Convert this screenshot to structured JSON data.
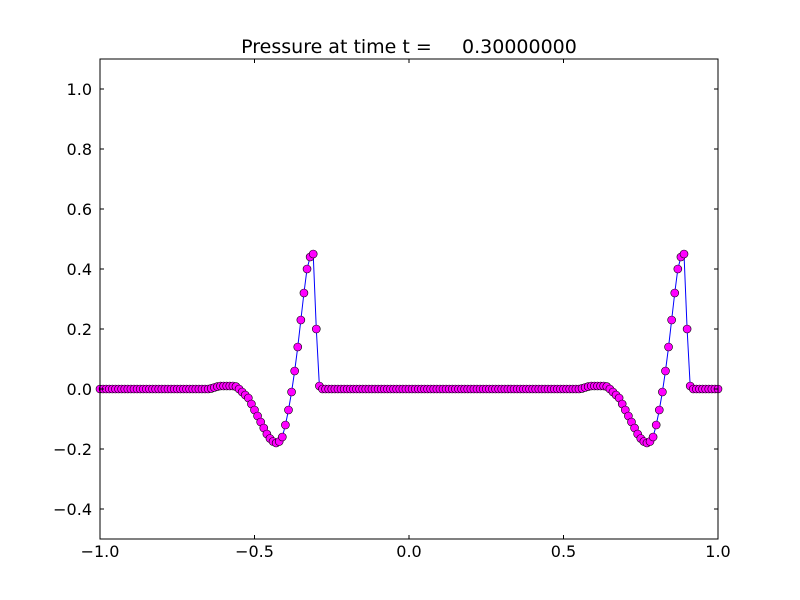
{
  "chart_data": {
    "type": "line",
    "title": "Pressure at time t =     0.30000000",
    "x": [
      -1.0,
      -0.99,
      -0.98,
      -0.97,
      -0.96,
      -0.95,
      -0.94,
      -0.93,
      -0.92,
      -0.91,
      -0.9,
      -0.89,
      -0.88,
      -0.87,
      -0.86,
      -0.85,
      -0.84,
      -0.83,
      -0.82,
      -0.81,
      -0.8,
      -0.79,
      -0.78,
      -0.77,
      -0.76,
      -0.75,
      -0.74,
      -0.73,
      -0.72,
      -0.71,
      -0.7,
      -0.69,
      -0.68,
      -0.67,
      -0.66,
      -0.65,
      -0.64,
      -0.63,
      -0.62,
      -0.61,
      -0.6,
      -0.59,
      -0.58,
      -0.57,
      -0.56,
      -0.55,
      -0.54,
      -0.53,
      -0.52,
      -0.51,
      -0.5,
      -0.49,
      -0.48,
      -0.47,
      -0.46,
      -0.45,
      -0.44,
      -0.43,
      -0.42,
      -0.41,
      -0.4,
      -0.39,
      -0.38,
      -0.37,
      -0.36,
      -0.35,
      -0.34,
      -0.33,
      -0.32,
      -0.31,
      -0.3,
      -0.29,
      -0.28,
      -0.27,
      -0.26,
      -0.25,
      -0.24,
      -0.23,
      -0.22,
      -0.21,
      -0.2,
      -0.19,
      -0.18,
      -0.17,
      -0.16,
      -0.15,
      -0.14,
      -0.13,
      -0.12,
      -0.11,
      -0.1,
      -0.09,
      -0.08,
      -0.07,
      -0.06,
      -0.05,
      -0.04,
      -0.03,
      -0.02,
      -0.01,
      0.0,
      0.01,
      0.02,
      0.03,
      0.04,
      0.05,
      0.06,
      0.07,
      0.08,
      0.09,
      0.1,
      0.11,
      0.12,
      0.13,
      0.14,
      0.15,
      0.16,
      0.17,
      0.18,
      0.19,
      0.2,
      0.21,
      0.22,
      0.23,
      0.24,
      0.25,
      0.26,
      0.27,
      0.28,
      0.29,
      0.3,
      0.31,
      0.32,
      0.33,
      0.34,
      0.35,
      0.36,
      0.37,
      0.38,
      0.39,
      0.4,
      0.41,
      0.42,
      0.43,
      0.44,
      0.45,
      0.46,
      0.47,
      0.48,
      0.49,
      0.5,
      0.51,
      0.52,
      0.53,
      0.54,
      0.55,
      0.56,
      0.57,
      0.58,
      0.59,
      0.6,
      0.61,
      0.62,
      0.63,
      0.64,
      0.65,
      0.66,
      0.67,
      0.68,
      0.69,
      0.7,
      0.71,
      0.72,
      0.73,
      0.74,
      0.75,
      0.76,
      0.77,
      0.78,
      0.79,
      0.8,
      0.81,
      0.82,
      0.83,
      0.84,
      0.85,
      0.86,
      0.87,
      0.88,
      0.89,
      0.9,
      0.91,
      0.92,
      0.93,
      0.94,
      0.95,
      0.96,
      0.97,
      0.98,
      0.99,
      1.0
    ],
    "series": [
      {
        "color": "#0000ff",
        "marker_color": "#ff00ff",
        "values": [
          0,
          0,
          0,
          0,
          0,
          0,
          0,
          0,
          0,
          0,
          0,
          0,
          0,
          0,
          0,
          0,
          0,
          0,
          0,
          0,
          0,
          0,
          0,
          0,
          0,
          0,
          0,
          0,
          0,
          0,
          0,
          0,
          0,
          0,
          0,
          0,
          0.002,
          0.005,
          0.008,
          0.01,
          0.01,
          0.01,
          0.01,
          0.01,
          0.008,
          0,
          -0.01,
          -0.02,
          -0.03,
          -0.05,
          -0.07,
          -0.09,
          -0.11,
          -0.13,
          -0.15,
          -0.165,
          -0.175,
          -0.18,
          -0.175,
          -0.16,
          -0.12,
          -0.07,
          -0.01,
          0.06,
          0.14,
          0.23,
          0.32,
          0.4,
          0.44,
          0.45,
          0.2,
          0.01,
          0,
          0,
          0,
          0,
          0,
          0,
          0,
          0,
          0,
          0,
          0,
          0,
          0,
          0,
          0,
          0,
          0,
          0,
          0,
          0,
          0,
          0,
          0,
          0,
          0,
          0,
          0,
          0,
          0,
          0,
          0,
          0,
          0,
          0,
          0,
          0,
          0,
          0,
          0,
          0,
          0,
          0,
          0,
          0,
          0,
          0,
          0,
          0,
          0,
          0,
          0,
          0,
          0,
          0,
          0,
          0,
          0,
          0,
          0,
          0,
          0,
          0,
          0,
          0,
          0,
          0,
          0,
          0,
          0,
          0,
          0,
          0,
          0,
          0,
          0,
          0,
          0,
          0,
          0,
          0,
          0,
          0,
          0,
          0,
          0.002,
          0.005,
          0.008,
          0.01,
          0.01,
          0.01,
          0.01,
          0.01,
          0.008,
          0,
          -0.01,
          -0.02,
          -0.03,
          -0.05,
          -0.07,
          -0.09,
          -0.11,
          -0.13,
          -0.15,
          -0.165,
          -0.175,
          -0.18,
          -0.175,
          -0.16,
          -0.12,
          -0.07,
          -0.01,
          0.06,
          0.14,
          0.23,
          0.32,
          0.4,
          0.44,
          0.45,
          0.2,
          0.01,
          0,
          0,
          0,
          0,
          0,
          0,
          0,
          0,
          0
        ]
      }
    ],
    "xlim": [
      -1,
      1
    ],
    "ylim": [
      -0.5,
      1.1
    ],
    "xticks": [
      {
        "value": -1,
        "label": "−1.0"
      },
      {
        "value": -0.5,
        "label": "−0.5"
      },
      {
        "value": 0,
        "label": "0.0"
      },
      {
        "value": 0.5,
        "label": "0.5"
      },
      {
        "value": 1,
        "label": "1.0"
      }
    ],
    "yticks": [
      {
        "value": -0.4,
        "label": "−0.4"
      },
      {
        "value": -0.2,
        "label": "−0.2"
      },
      {
        "value": 0,
        "label": "0.0"
      },
      {
        "value": 0.2,
        "label": "0.2"
      },
      {
        "value": 0.4,
        "label": "0.4"
      },
      {
        "value": 0.6,
        "label": "0.6"
      },
      {
        "value": 0.8,
        "label": "0.8"
      },
      {
        "value": 1,
        "label": "1.0"
      }
    ]
  }
}
